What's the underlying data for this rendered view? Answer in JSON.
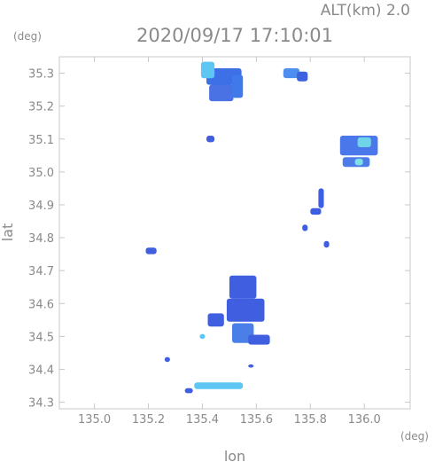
{
  "chart_data": {
    "type": "heatmap",
    "title": "2020/09/17 17:10:01",
    "subtitle": "ALT(km) 2.0",
    "xlabel": "lon",
    "ylabel": "lat",
    "x_unit": "(deg)",
    "y_unit": "(deg)",
    "xlim": [
      134.87,
      136.17
    ],
    "ylim": [
      34.28,
      35.35
    ],
    "x_ticks": [
      "135.0",
      "135.2",
      "135.4",
      "135.6",
      "135.8",
      "136.0"
    ],
    "y_ticks": [
      "34.3",
      "34.4",
      "34.5",
      "34.6",
      "34.7",
      "34.8",
      "34.9",
      "35.0",
      "35.1",
      "35.2",
      "35.3"
    ],
    "grid": false,
    "echo_cells": [
      {
        "lon": 135.48,
        "lat": 35.29,
        "w": 0.13,
        "h": 0.05,
        "color": "#3d6fe6"
      },
      {
        "lon": 135.47,
        "lat": 35.24,
        "w": 0.09,
        "h": 0.05,
        "color": "#4a72e4"
      },
      {
        "lon": 135.42,
        "lat": 35.31,
        "w": 0.05,
        "h": 0.05,
        "color": "#5ec6f2"
      },
      {
        "lon": 135.53,
        "lat": 35.26,
        "w": 0.04,
        "h": 0.07,
        "color": "#3f79ea"
      },
      {
        "lon": 135.73,
        "lat": 35.3,
        "w": 0.06,
        "h": 0.03,
        "color": "#4d8ef0"
      },
      {
        "lon": 135.77,
        "lat": 35.29,
        "w": 0.04,
        "h": 0.03,
        "color": "#3c62e0"
      },
      {
        "lon": 135.98,
        "lat": 35.08,
        "w": 0.14,
        "h": 0.06,
        "color": "#4a78ea"
      },
      {
        "lon": 136.0,
        "lat": 35.09,
        "w": 0.05,
        "h": 0.03,
        "color": "#6fd4e8"
      },
      {
        "lon": 135.97,
        "lat": 35.03,
        "w": 0.1,
        "h": 0.03,
        "color": "#4d7ce8"
      },
      {
        "lon": 135.98,
        "lat": 35.03,
        "w": 0.03,
        "h": 0.02,
        "color": "#7ee0e8"
      },
      {
        "lon": 135.43,
        "lat": 35.1,
        "w": 0.03,
        "h": 0.02,
        "color": "#3f5fe0"
      },
      {
        "lon": 135.84,
        "lat": 34.92,
        "w": 0.02,
        "h": 0.06,
        "color": "#3d5ee0"
      },
      {
        "lon": 135.82,
        "lat": 34.88,
        "w": 0.04,
        "h": 0.02,
        "color": "#3d5ee0"
      },
      {
        "lon": 135.55,
        "lat": 34.65,
        "w": 0.1,
        "h": 0.07,
        "color": "#3f5fe0"
      },
      {
        "lon": 135.56,
        "lat": 34.58,
        "w": 0.14,
        "h": 0.07,
        "color": "#3f5fe0"
      },
      {
        "lon": 135.55,
        "lat": 34.51,
        "w": 0.08,
        "h": 0.06,
        "color": "#4b7fe8"
      },
      {
        "lon": 135.61,
        "lat": 34.49,
        "w": 0.08,
        "h": 0.03,
        "color": "#3f5fe0"
      },
      {
        "lon": 135.45,
        "lat": 34.55,
        "w": 0.06,
        "h": 0.04,
        "color": "#3f5fe0"
      },
      {
        "lon": 135.4,
        "lat": 34.5,
        "w": 0.02,
        "h": 0.015,
        "color": "#5ec6f2"
      },
      {
        "lon": 135.46,
        "lat": 34.35,
        "w": 0.18,
        "h": 0.02,
        "color": "#5ec6f2"
      },
      {
        "lon": 135.35,
        "lat": 34.335,
        "w": 0.03,
        "h": 0.015,
        "color": "#3f5fe0"
      },
      {
        "lon": 135.21,
        "lat": 34.76,
        "w": 0.04,
        "h": 0.02,
        "color": "#3f5fe0"
      },
      {
        "lon": 135.27,
        "lat": 34.43,
        "w": 0.02,
        "h": 0.015,
        "color": "#3f5fe0"
      },
      {
        "lon": 135.58,
        "lat": 34.41,
        "w": 0.02,
        "h": 0.01,
        "color": "#3f5fe0"
      },
      {
        "lon": 135.78,
        "lat": 34.83,
        "w": 0.02,
        "h": 0.02,
        "color": "#3f5fe0"
      },
      {
        "lon": 135.86,
        "lat": 34.78,
        "w": 0.02,
        "h": 0.02,
        "color": "#3f5fe0"
      }
    ]
  }
}
